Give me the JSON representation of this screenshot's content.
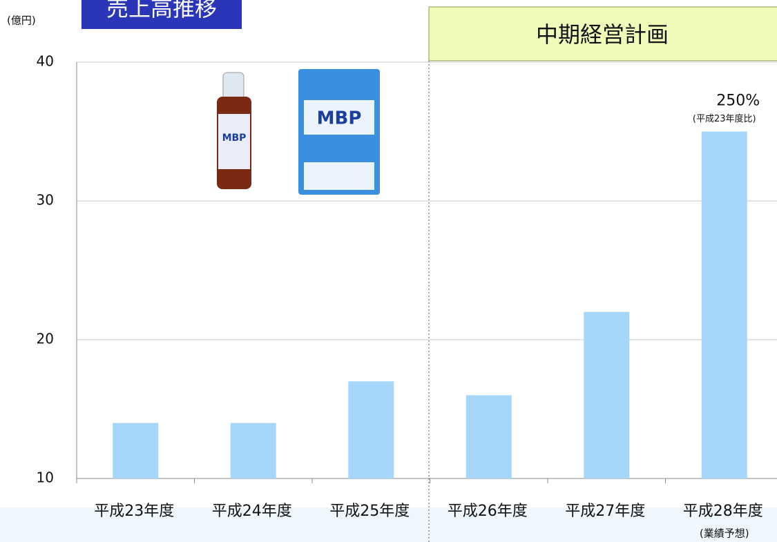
{
  "chart_data": {
    "type": "bar",
    "title": "売上高推移",
    "ylabel": "(億円)",
    "plan_label": "中期経営計画",
    "categories": [
      "平成23年度",
      "平成24年度",
      "平成25年度",
      "平成26年度",
      "平成27年度",
      "平成28年度"
    ],
    "category_notes": [
      null,
      null,
      null,
      null,
      null,
      "(業績予想)"
    ],
    "values": [
      14,
      14,
      17,
      16,
      22,
      35
    ],
    "color": "#a6d7fb",
    "ylim": [
      10,
      40
    ],
    "yticks": [
      10,
      20,
      30,
      40
    ],
    "grid": true,
    "annotations": [
      {
        "text": "250%",
        "sub": "(平成23年度比)"
      }
    ],
    "product_labels": [
      "MBP",
      "MBP"
    ]
  }
}
